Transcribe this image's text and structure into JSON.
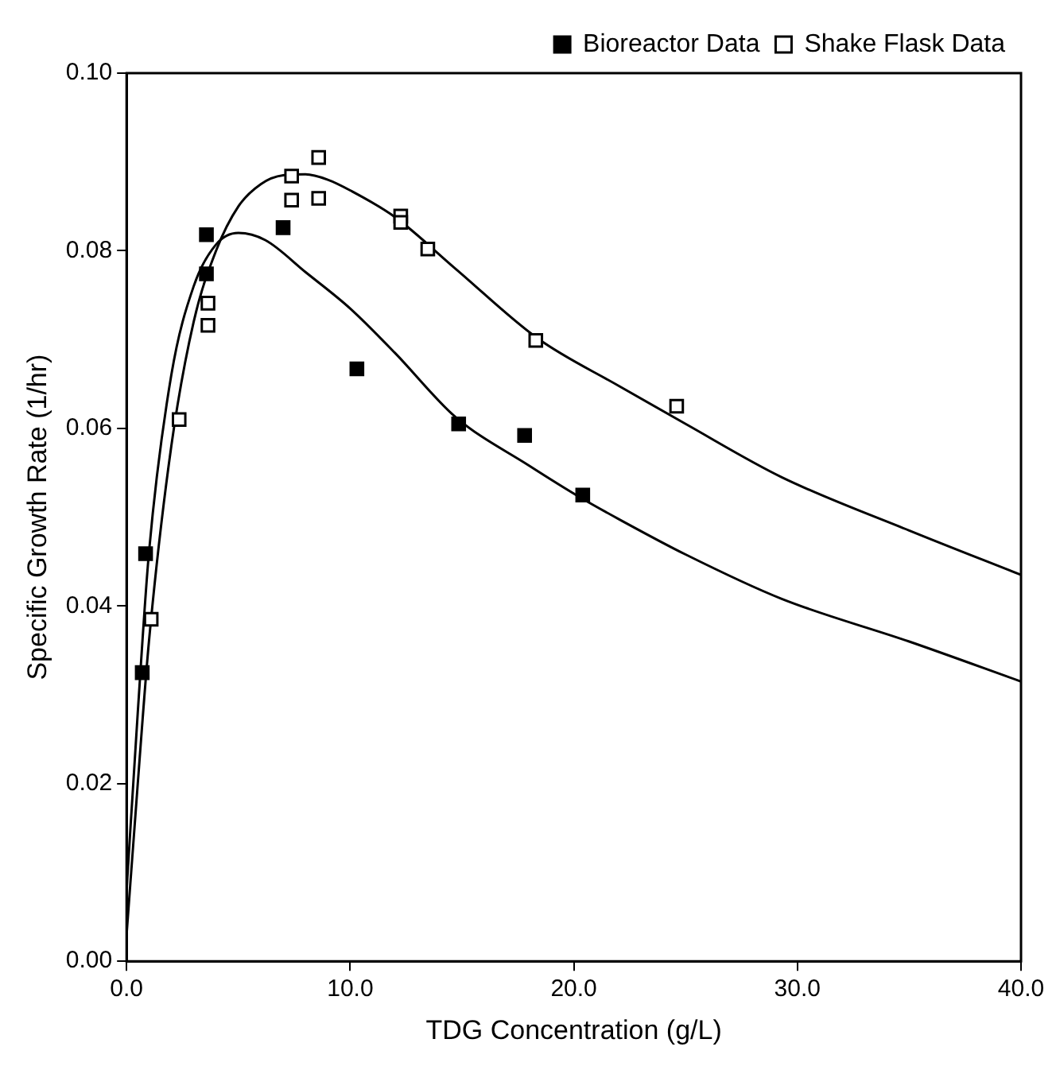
{
  "chart_data": {
    "type": "scatter",
    "xlabel": "TDG Concentration (g/L)",
    "ylabel": "Specific Growth Rate (1/hr)",
    "xlim": [
      0,
      40
    ],
    "ylim": [
      0,
      0.1
    ],
    "xticks": [
      {
        "value": 0,
        "label": "0.0"
      },
      {
        "value": 10,
        "label": "10.0"
      },
      {
        "value": 20,
        "label": "20.0"
      },
      {
        "value": 30,
        "label": "30.0"
      },
      {
        "value": 40,
        "label": "40.0"
      }
    ],
    "yticks": [
      {
        "value": 0,
        "label": "0.00"
      },
      0.02,
      0.04,
      0.06,
      0.08,
      {
        "value": 0.1,
        "label": "0.10"
      }
    ],
    "grid": false,
    "legend": "top right",
    "marker": "square",
    "series": [
      {
        "name": "Bioreactor Data",
        "color": "#000000",
        "x": [
          0.7,
          0.85,
          3.57,
          3.57,
          7.0,
          10.3,
          14.85,
          17.8,
          20.4
        ],
        "values": [
          0.0325,
          0.0459,
          0.0818,
          0.0774,
          0.0826,
          0.0667,
          0.0605,
          0.0592,
          0.0525
        ]
      },
      {
        "name": "Shake Flask Data",
        "color": "#ffffff",
        "x": [
          1.1,
          2.35,
          3.64,
          3.64,
          7.38,
          7.38,
          8.59,
          8.59,
          12.26,
          12.26,
          13.47,
          18.3,
          24.6
        ],
        "values": [
          0.0385,
          0.061,
          0.0741,
          0.0716,
          0.0884,
          0.0857,
          0.0905,
          0.0859,
          0.0839,
          0.0832,
          0.0802,
          0.0699,
          0.0625
        ]
      },
      {
        "type": "line",
        "color": "#000000",
        "marker": "none",
        "x": [
          0,
          0.5,
          1,
          2,
          3,
          4,
          5,
          6.2,
          8,
          10,
          12,
          14.7,
          18,
          20.3,
          22,
          25,
          29.3,
          35,
          40
        ],
        "values": [
          0.008,
          0.028,
          0.046,
          0.066,
          0.076,
          0.0807,
          0.082,
          0.0812,
          0.0776,
          0.0735,
          0.0685,
          0.0613,
          0.0558,
          0.0522,
          0.0498,
          0.0458,
          0.0408,
          0.036,
          0.0315
        ]
      },
      {
        "type": "line",
        "color": "#000000",
        "marker": "none",
        "x": [
          0,
          0.5,
          1,
          2,
          3,
          4,
          5,
          6,
          7,
          8,
          9,
          10,
          12,
          14.7,
          18.4,
          22,
          25,
          29.3,
          35,
          40
        ],
        "values": [
          0.003,
          0.02,
          0.036,
          0.058,
          0.072,
          0.08,
          0.085,
          0.0875,
          0.0885,
          0.0886,
          0.088,
          0.0868,
          0.0838,
          0.078,
          0.0701,
          0.0648,
          0.0605,
          0.0545,
          0.0485,
          0.0435
        ]
      }
    ]
  }
}
